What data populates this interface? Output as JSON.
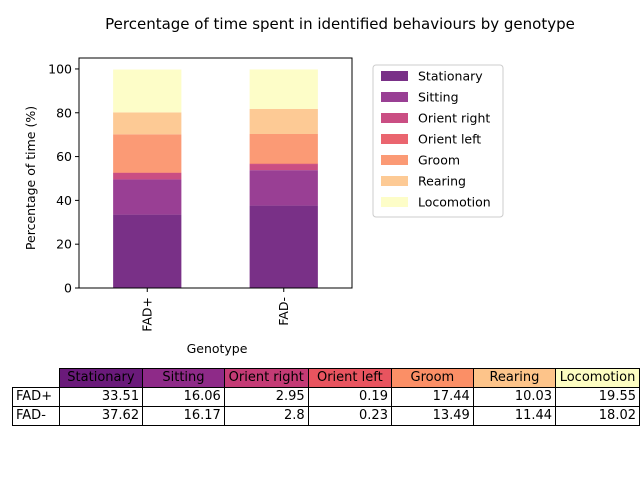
{
  "chart_data": {
    "type": "bar",
    "stacked": true,
    "title": "Percentage of time spent in identified behaviours by genotype",
    "xlabel": "Genotype",
    "ylabel": "Percentage of time (%)",
    "categories": [
      "FAD+",
      "FAD-"
    ],
    "ylim": [
      0,
      105
    ],
    "yticks": [
      "0",
      "20",
      "40",
      "60",
      "80",
      "100"
    ],
    "legend_position": "right",
    "grid": false,
    "series": [
      {
        "name": "Stationary",
        "color": "#6a1a7a",
        "values": [
          33.51,
          37.62
        ],
        "labels": [
          "33.51",
          "37.62"
        ]
      },
      {
        "name": "Sitting",
        "color": "#8e2a88",
        "values": [
          16.06,
          16.17
        ],
        "labels": [
          "16.06",
          "16.17"
        ]
      },
      {
        "name": "Orient right",
        "color": "#c43b75",
        "values": [
          2.95,
          2.8
        ],
        "labels": [
          "2.95",
          "2.8"
        ]
      },
      {
        "name": "Orient left",
        "color": "#e8545f",
        "values": [
          0.19,
          0.23
        ],
        "labels": [
          "0.19",
          "0.23"
        ]
      },
      {
        "name": "Groom",
        "color": "#fb8f66",
        "values": [
          17.44,
          13.49
        ],
        "labels": [
          "17.44",
          "13.49"
        ]
      },
      {
        "name": "Rearing",
        "color": "#fdc48a",
        "values": [
          10.03,
          11.44
        ],
        "labels": [
          "10.03",
          "11.44"
        ]
      },
      {
        "name": "Locomotion",
        "color": "#fdfdc2",
        "values": [
          19.55,
          18.02
        ],
        "labels": [
          "19.55",
          "18.02"
        ]
      }
    ]
  }
}
